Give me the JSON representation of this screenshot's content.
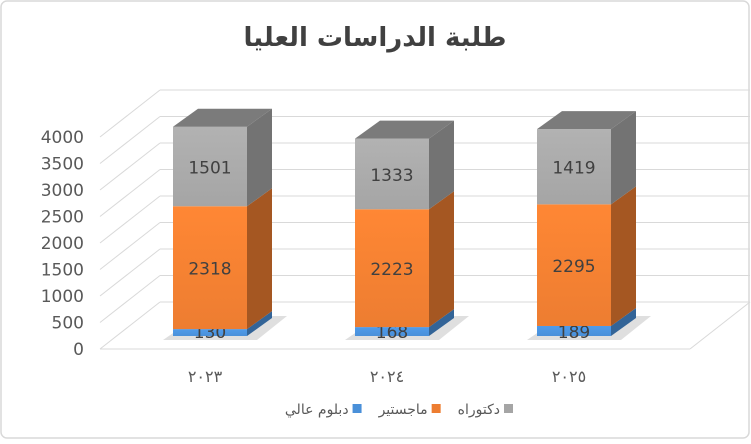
{
  "chart_data": {
    "type": "bar",
    "stacked": true,
    "three_d": true,
    "title": "طلبة الدراسات العليا",
    "categories": [
      "٢٠٢٣",
      "٢٠٢٤",
      "٢٠٢٥"
    ],
    "series": [
      {
        "name": "دبلوم عالي",
        "values": [
          130,
          168,
          189
        ],
        "color": "#4a90d9"
      },
      {
        "name": "ماجستير",
        "values": [
          2318,
          2223,
          2295
        ],
        "color": "#ed7d31"
      },
      {
        "name": "دكتوراه",
        "values": [
          1501,
          1333,
          1419
        ],
        "color": "#a5a5a5"
      }
    ],
    "ylim": [
      0,
      4000
    ],
    "yticks": [
      "0",
      "500",
      "1000",
      "1500",
      "2000",
      "2500",
      "3000",
      "3500",
      "4000"
    ],
    "grid": true,
    "legend_position": "bottom"
  }
}
